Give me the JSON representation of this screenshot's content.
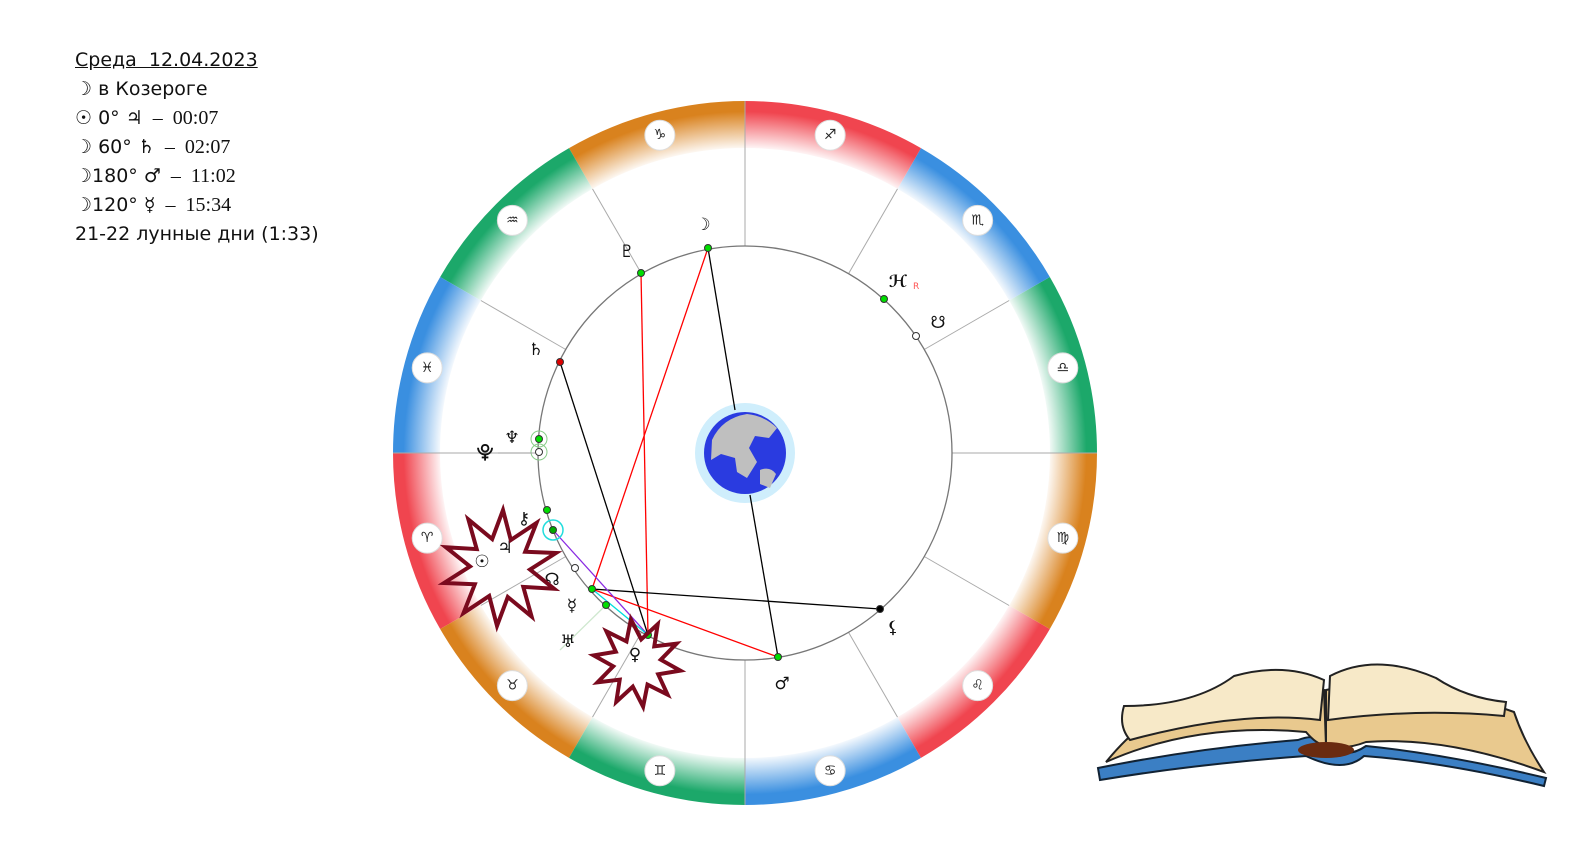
{
  "info": {
    "title": "Среда  12.04.2023",
    "moon_sign": {
      "glyph": "☽",
      "text": " в Козероге"
    },
    "aspects": [
      {
        "p1": "☉",
        "angle": " 0° ",
        "p2": "♃",
        "time": "  –  00:07"
      },
      {
        "p1": "☽",
        "angle": " 60° ",
        "p2": "♄",
        "time": "  –  02:07"
      },
      {
        "p1": "☽",
        "angle": "180° ",
        "p2": "♂",
        "time": "  –  11:02"
      },
      {
        "p1": "☽",
        "angle": "120° ",
        "p2": "☿",
        "time": "  –  15:34"
      }
    ],
    "lunar_days": "21-22 лунные дни (1:33)"
  },
  "chart": {
    "signs": [
      "♈",
      "♉",
      "♊",
      "♋",
      "♌",
      "♍",
      "♎",
      "♏",
      "♐",
      "♑",
      "♒",
      "♓"
    ],
    "element_colors": {
      "fire": "#f0454f",
      "earth": "#d9821e",
      "air": "#1ca86a",
      "water": "#3a8fe0"
    },
    "planets": {
      "moon": "☽",
      "pluto": "♇",
      "saturn": "♄",
      "neptune": "♆",
      "pluto_alt": "⯓",
      "chiron": "⚷",
      "jupiter": "♃",
      "sun": "☉",
      "north_node": "☊",
      "mercury": "♀",
      "mercury_glyph": "☿",
      "uranus": "♅",
      "venus": "♀",
      "mars": "♂",
      "lilith": "⚸",
      "uranus_r": "ℋ",
      "retro": "R",
      "south_node": "☋"
    },
    "aspect_colors": {
      "opposition": "#000000",
      "square": "#ff0000",
      "trine": "#ff0000",
      "sextile": "#00e0e0",
      "other": "#8a2be2"
    }
  },
  "decor": {
    "book": "open-book-illustration",
    "stars": "burst-highlight"
  }
}
